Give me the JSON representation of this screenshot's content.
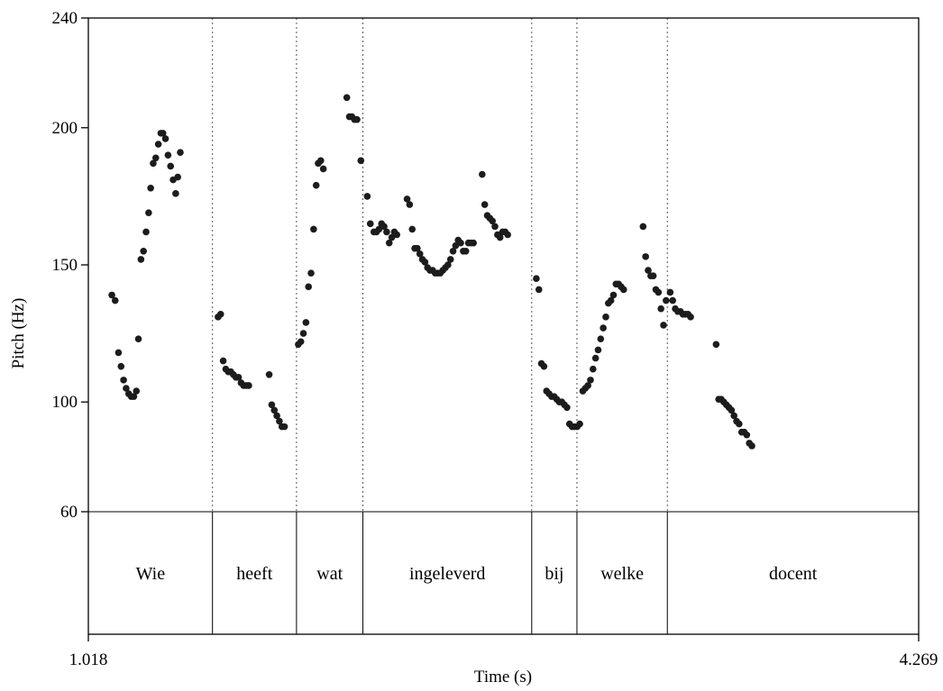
{
  "chart_data": {
    "type": "scatter",
    "xlabel": "Time (s)",
    "ylabel": "Pitch (Hz)",
    "xlim": [
      1.018,
      4.269
    ],
    "ylim": [
      60,
      240
    ],
    "x_ticks": [
      "1.018",
      "4.269"
    ],
    "y_ticks": [
      {
        "value": 60,
        "label": "60"
      },
      {
        "value": 100,
        "label": "100"
      },
      {
        "value": 150,
        "label": "150"
      },
      {
        "value": 200,
        "label": "200"
      },
      {
        "value": 240,
        "label": "240"
      }
    ],
    "grid": false,
    "words": [
      {
        "label": "Wie",
        "start": 1.018,
        "end": 1.504
      },
      {
        "label": "heeft",
        "start": 1.504,
        "end": 1.833
      },
      {
        "label": "wat",
        "start": 1.833,
        "end": 2.093
      },
      {
        "label": "ingeleverd",
        "start": 2.093,
        "end": 2.754
      },
      {
        "label": "bij",
        "start": 2.754,
        "end": 2.931
      },
      {
        "label": "welke",
        "start": 2.931,
        "end": 3.285
      },
      {
        "label": "docent",
        "start": 3.285,
        "end": 4.269
      }
    ],
    "points": [
      [
        1.11,
        139
      ],
      [
        1.123,
        137
      ],
      [
        1.136,
        118
      ],
      [
        1.146,
        113
      ],
      [
        1.156,
        108
      ],
      [
        1.166,
        105
      ],
      [
        1.176,
        103
      ],
      [
        1.186,
        102
      ],
      [
        1.196,
        102
      ],
      [
        1.206,
        104
      ],
      [
        1.214,
        123
      ],
      [
        1.224,
        152
      ],
      [
        1.234,
        155
      ],
      [
        1.244,
        162
      ],
      [
        1.254,
        169
      ],
      [
        1.262,
        178
      ],
      [
        1.272,
        187
      ],
      [
        1.282,
        189
      ],
      [
        1.292,
        194
      ],
      [
        1.302,
        198
      ],
      [
        1.31,
        198
      ],
      [
        1.32,
        196
      ],
      [
        1.33,
        190
      ],
      [
        1.34,
        186
      ],
      [
        1.35,
        181
      ],
      [
        1.36,
        176
      ],
      [
        1.368,
        182
      ],
      [
        1.378,
        191
      ],
      [
        1.526,
        131
      ],
      [
        1.536,
        132
      ],
      [
        1.546,
        115
      ],
      [
        1.556,
        112
      ],
      [
        1.566,
        111
      ],
      [
        1.576,
        111
      ],
      [
        1.586,
        110
      ],
      [
        1.596,
        109
      ],
      [
        1.606,
        109
      ],
      [
        1.616,
        107
      ],
      [
        1.626,
        106
      ],
      [
        1.636,
        106
      ],
      [
        1.646,
        106
      ],
      [
        1.726,
        110
      ],
      [
        1.736,
        99
      ],
      [
        1.746,
        97
      ],
      [
        1.756,
        95
      ],
      [
        1.766,
        93
      ],
      [
        1.776,
        91
      ],
      [
        1.786,
        91
      ],
      [
        1.84,
        121
      ],
      [
        1.85,
        122
      ],
      [
        1.86,
        125
      ],
      [
        1.87,
        129
      ],
      [
        1.88,
        142
      ],
      [
        1.89,
        147
      ],
      [
        1.9,
        163
      ],
      [
        1.91,
        179
      ],
      [
        1.918,
        187
      ],
      [
        1.928,
        188
      ],
      [
        1.938,
        185
      ],
      [
        2.03,
        211
      ],
      [
        2.04,
        204
      ],
      [
        2.05,
        204
      ],
      [
        2.06,
        203
      ],
      [
        2.07,
        203
      ],
      [
        2.085,
        188
      ],
      [
        2.11,
        175
      ],
      [
        2.122,
        165
      ],
      [
        2.136,
        162
      ],
      [
        2.146,
        162
      ],
      [
        2.156,
        163
      ],
      [
        2.166,
        165
      ],
      [
        2.176,
        164
      ],
      [
        2.186,
        162
      ],
      [
        2.196,
        158
      ],
      [
        2.206,
        160
      ],
      [
        2.216,
        162
      ],
      [
        2.226,
        161
      ],
      [
        2.266,
        174
      ],
      [
        2.276,
        172
      ],
      [
        2.286,
        163
      ],
      [
        2.296,
        156
      ],
      [
        2.306,
        156
      ],
      [
        2.316,
        154
      ],
      [
        2.326,
        152
      ],
      [
        2.336,
        151
      ],
      [
        2.346,
        149
      ],
      [
        2.356,
        148
      ],
      [
        2.366,
        148
      ],
      [
        2.376,
        147
      ],
      [
        2.386,
        147
      ],
      [
        2.396,
        147
      ],
      [
        2.406,
        148
      ],
      [
        2.416,
        149
      ],
      [
        2.426,
        150
      ],
      [
        2.436,
        152
      ],
      [
        2.446,
        155
      ],
      [
        2.456,
        157
      ],
      [
        2.466,
        159
      ],
      [
        2.476,
        158
      ],
      [
        2.486,
        155
      ],
      [
        2.496,
        155
      ],
      [
        2.506,
        158
      ],
      [
        2.516,
        158
      ],
      [
        2.526,
        158
      ],
      [
        2.56,
        183
      ],
      [
        2.57,
        172
      ],
      [
        2.58,
        168
      ],
      [
        2.59,
        167
      ],
      [
        2.6,
        166
      ],
      [
        2.61,
        164
      ],
      [
        2.62,
        161
      ],
      [
        2.63,
        160
      ],
      [
        2.64,
        162
      ],
      [
        2.65,
        162
      ],
      [
        2.66,
        161
      ],
      [
        2.772,
        145
      ],
      [
        2.782,
        141
      ],
      [
        2.792,
        114
      ],
      [
        2.802,
        113
      ],
      [
        2.812,
        104
      ],
      [
        2.822,
        103
      ],
      [
        2.832,
        102
      ],
      [
        2.842,
        102
      ],
      [
        2.852,
        101
      ],
      [
        2.862,
        100
      ],
      [
        2.872,
        100
      ],
      [
        2.882,
        99
      ],
      [
        2.892,
        98
      ],
      [
        2.902,
        92
      ],
      [
        2.912,
        91
      ],
      [
        2.922,
        91
      ],
      [
        2.932,
        91
      ],
      [
        2.942,
        92
      ],
      [
        2.954,
        104
      ],
      [
        2.964,
        105
      ],
      [
        2.974,
        106
      ],
      [
        2.984,
        108
      ],
      [
        2.994,
        112
      ],
      [
        3.004,
        116
      ],
      [
        3.014,
        119
      ],
      [
        3.024,
        123
      ],
      [
        3.034,
        127
      ],
      [
        3.044,
        131
      ],
      [
        3.054,
        136
      ],
      [
        3.064,
        137
      ],
      [
        3.074,
        139
      ],
      [
        3.084,
        143
      ],
      [
        3.094,
        143
      ],
      [
        3.104,
        142
      ],
      [
        3.114,
        141
      ],
      [
        3.19,
        164
      ],
      [
        3.2,
        153
      ],
      [
        3.21,
        148
      ],
      [
        3.22,
        146
      ],
      [
        3.23,
        146
      ],
      [
        3.24,
        141
      ],
      [
        3.25,
        140
      ],
      [
        3.26,
        134
      ],
      [
        3.27,
        128
      ],
      [
        3.28,
        137
      ],
      [
        3.296,
        140
      ],
      [
        3.306,
        137
      ],
      [
        3.316,
        134
      ],
      [
        3.326,
        133
      ],
      [
        3.336,
        133
      ],
      [
        3.346,
        132
      ],
      [
        3.356,
        132
      ],
      [
        3.366,
        132
      ],
      [
        3.376,
        131
      ],
      [
        3.476,
        121
      ],
      [
        3.486,
        101
      ],
      [
        3.496,
        101
      ],
      [
        3.506,
        100
      ],
      [
        3.516,
        99
      ],
      [
        3.526,
        98
      ],
      [
        3.536,
        97
      ],
      [
        3.546,
        95
      ],
      [
        3.556,
        93
      ],
      [
        3.566,
        92
      ],
      [
        3.576,
        89
      ],
      [
        3.586,
        89
      ],
      [
        3.596,
        88
      ],
      [
        3.606,
        85
      ],
      [
        3.616,
        84
      ]
    ]
  }
}
